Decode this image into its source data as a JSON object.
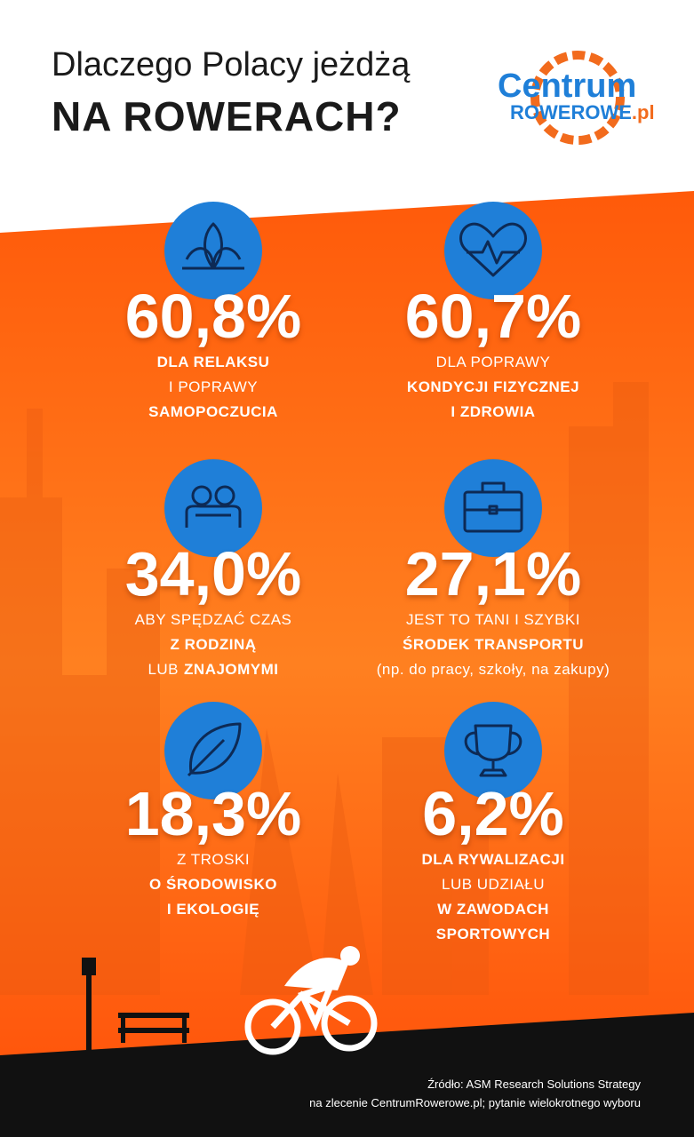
{
  "header": {
    "title_line1": "Dlaczego Polacy jeżdżą",
    "title_line2": "NA ROWERACH?"
  },
  "logo": {
    "line1": "Centrum",
    "line2": "ROWEROWE",
    "suffix": ".pl"
  },
  "items": [
    {
      "value": "60,8%",
      "lines": [
        [
          {
            "text": "DLA RELAKSU",
            "bold": true
          }
        ],
        [
          {
            "text": "I POPRAWY",
            "bold": false
          }
        ],
        [
          {
            "text": "SAMOPOCZUCIA",
            "bold": true
          }
        ]
      ]
    },
    {
      "value": "60,7%",
      "lines": [
        [
          {
            "text": "DLA POPRAWY",
            "bold": false
          }
        ],
        [
          {
            "text": "KONDYCJI FIZYCZNEJ",
            "bold": true
          }
        ],
        [
          {
            "text": "I ZDROWIA",
            "bold": true
          }
        ]
      ]
    },
    {
      "value": "34,0%",
      "lines": [
        [
          {
            "text": "ABY SPĘDZAĆ CZAS",
            "bold": false
          }
        ],
        [
          {
            "text": "Z RODZINĄ",
            "bold": true
          }
        ],
        [
          {
            "text": "LUB",
            "bold": false
          },
          {
            "text": "ZNAJOMYMI",
            "bold": true
          }
        ]
      ]
    },
    {
      "value": "27,1%",
      "lines": [
        [
          {
            "text": "JEST TO TANI I SZYBKI",
            "bold": false
          }
        ],
        [
          {
            "text": "ŚRODEK TRANSPORTU",
            "bold": true
          }
        ],
        [
          {
            "text": "(np. do pracy, szkoły, na zakupy)",
            "bold": false
          }
        ]
      ]
    },
    {
      "value": "18,3%",
      "lines": [
        [
          {
            "text": "Z TROSKI",
            "bold": false
          }
        ],
        [
          {
            "text": "O ŚRODOWISKO",
            "bold": true
          }
        ],
        [
          {
            "text": "I EKOLOGIĘ",
            "bold": true
          }
        ]
      ]
    },
    {
      "value": "6,2%",
      "lines": [
        [
          {
            "text": "DLA RYWALIZACJI",
            "bold": true
          }
        ],
        [
          {
            "text": "LUB UDZIAŁU",
            "bold": false
          }
        ],
        [
          {
            "text": "W ZAWODACH",
            "bold": true
          }
        ],
        [
          {
            "text": "SPORTOWYCH",
            "bold": true
          }
        ]
      ]
    }
  ],
  "footer": {
    "line1": "Źródło: ASM Research Solutions Strategy",
    "line2": "na zlecenie CentrumRowerowe.pl; pytanie wielokrotnego wyboru"
  }
}
